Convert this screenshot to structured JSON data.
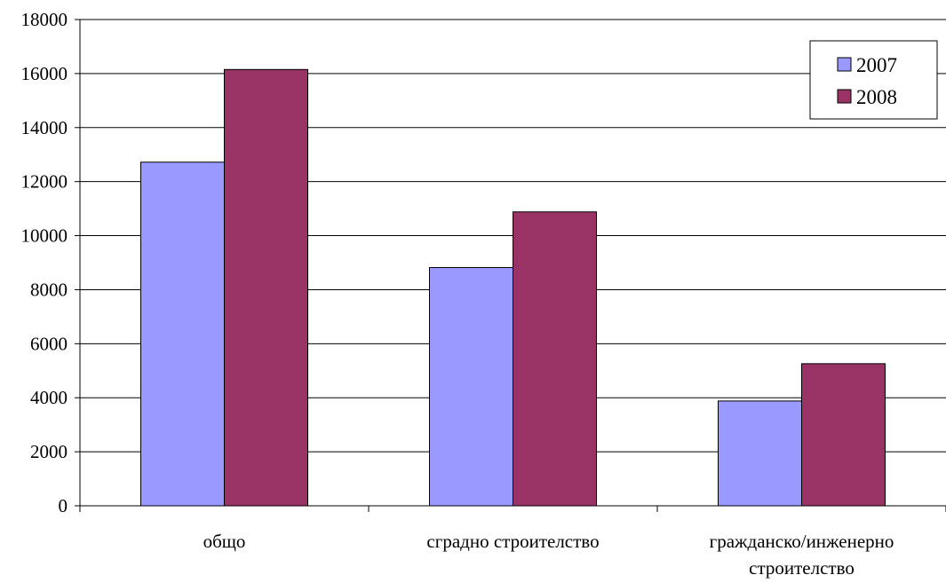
{
  "chart_data": {
    "type": "bar",
    "categories": [
      "общо",
      "сградно строителство",
      "гражданско/инженерно строителство"
    ],
    "category_label_lines": [
      [
        "общо"
      ],
      [
        "сградно строителство"
      ],
      [
        "гражданско/инженерно",
        "строителство"
      ]
    ],
    "series": [
      {
        "name": "2007",
        "color": "#9999FF",
        "values": [
          12720,
          8820,
          3880
        ]
      },
      {
        "name": "2008",
        "color": "#993366",
        "values": [
          16150,
          10880,
          5260
        ]
      }
    ],
    "ylim": [
      0,
      18000
    ],
    "yticks": [
      0,
      2000,
      4000,
      6000,
      8000,
      10000,
      12000,
      14000,
      16000,
      18000
    ],
    "grid": true,
    "legend_position": "top-right",
    "title": "",
    "xlabel": "",
    "ylabel": ""
  }
}
